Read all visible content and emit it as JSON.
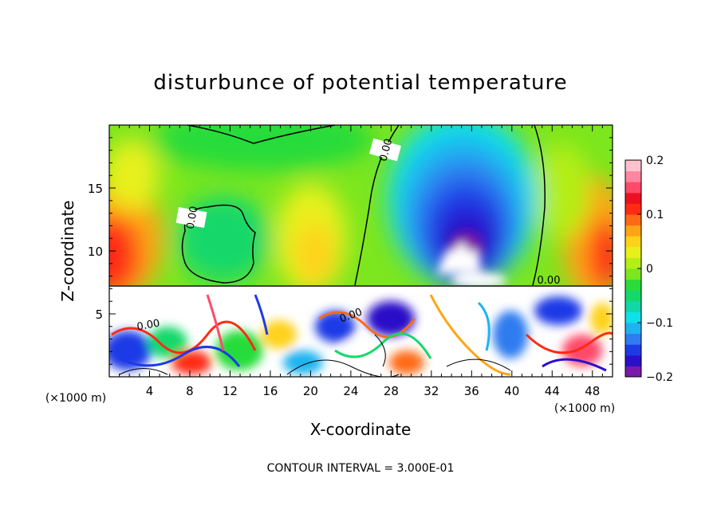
{
  "chart_data": {
    "type": "heatmap",
    "title": "disturbunce of potential temperature",
    "xlabel": "X-coordinate",
    "ylabel": "Z-coordinate",
    "x_unit": "(×1000 m)",
    "y_unit": "(×1000 m)",
    "xlim": [
      0,
      50
    ],
    "ylim": [
      0,
      20
    ],
    "x_ticks": [
      4,
      8,
      12,
      16,
      20,
      24,
      28,
      32,
      36,
      40,
      44,
      48
    ],
    "y_ticks": [
      5,
      10,
      15
    ],
    "note": "CONTOUR INTERVAL = 3.000E-01",
    "contour_label": "0.00",
    "colorbar": {
      "min": -0.2,
      "max": 0.2,
      "ticks": [
        0.2,
        0.1,
        0,
        -0.1,
        -0.2
      ],
      "tick_labels": [
        "0.2",
        "0.1",
        "0",
        "−0.1",
        "−0.2"
      ],
      "colors": [
        "#7a1aa8",
        "#2a10c8",
        "#1e3ae6",
        "#2f7cf0",
        "#1fb3f0",
        "#10e0e8",
        "#10d8a8",
        "#14d86a",
        "#28dc3a",
        "#7ce61e",
        "#b4ee14",
        "#e8f01a",
        "#ffd21a",
        "#ffa514",
        "#ff6a14",
        "#ff2a12",
        "#ee1020",
        "#ff4a6a",
        "#ff86a0",
        "#ffc2cc"
      ]
    }
  }
}
